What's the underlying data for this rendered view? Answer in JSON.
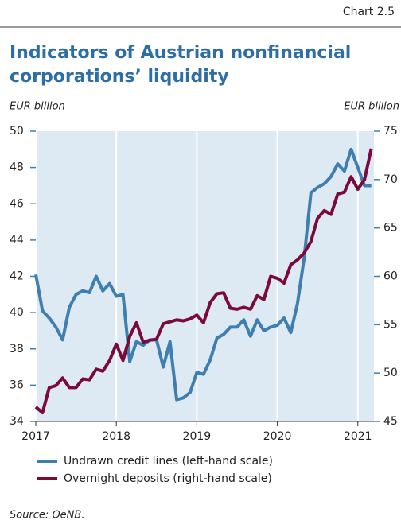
{
  "chart_data": {
    "type": "line",
    "chart_label": "Chart 2.5",
    "title": [
      "Indicators of Austrian nonfinancial",
      "corporations’ liquidity"
    ],
    "y_label": "EUR billion",
    "y2_label": "EUR billion",
    "source": "Source: OeNB.",
    "x": [
      2017.0,
      2017.083,
      2017.167,
      2017.25,
      2017.333,
      2017.417,
      2017.5,
      2017.583,
      2017.667,
      2017.75,
      2017.833,
      2017.917,
      2018.0,
      2018.083,
      2018.167,
      2018.25,
      2018.333,
      2018.417,
      2018.5,
      2018.583,
      2018.667,
      2018.75,
      2018.833,
      2018.917,
      2019.0,
      2019.083,
      2019.167,
      2019.25,
      2019.333,
      2019.417,
      2019.5,
      2019.583,
      2019.667,
      2019.75,
      2019.833,
      2019.917,
      2020.0,
      2020.083,
      2020.167,
      2020.25,
      2020.333,
      2020.417,
      2020.5,
      2020.583,
      2020.667,
      2020.75,
      2020.833,
      2020.917,
      2021.0,
      2021.083,
      2021.167
    ],
    "series": [
      {
        "name": "Undrawn credit lines (left-hand scale)",
        "color": "#3f7fb0",
        "values": [
          42.1,
          40.1,
          39.7,
          39.2,
          38.5,
          40.3,
          41.0,
          41.2,
          41.1,
          42.0,
          41.2,
          41.6,
          40.9,
          41.0,
          37.3,
          38.4,
          38.2,
          38.5,
          38.5,
          37.0,
          38.4,
          35.2,
          35.3,
          35.6,
          36.7,
          36.6,
          37.4,
          38.6,
          38.8,
          39.2,
          39.2,
          39.6,
          38.7,
          39.6,
          39.0,
          39.2,
          39.3,
          39.7,
          38.9,
          40.5,
          43.0,
          46.6,
          46.9,
          47.1,
          47.5,
          48.2,
          47.8,
          49.0,
          48.0,
          47.0,
          47.0
        ]
      },
      {
        "name": "Overnight deposits (right-hand scale)",
        "color": "#7b0a3a",
        "axis": "y2",
        "values": [
          46.5,
          45.9,
          48.5,
          48.7,
          49.5,
          48.5,
          48.5,
          49.4,
          49.3,
          50.4,
          50.2,
          51.3,
          53.0,
          51.3,
          53.8,
          55.2,
          53.2,
          53.4,
          53.5,
          55.1,
          55.3,
          55.5,
          55.4,
          55.6,
          56.0,
          55.2,
          57.3,
          58.2,
          58.3,
          56.7,
          56.6,
          56.8,
          56.6,
          58.0,
          57.6,
          60.0,
          59.8,
          59.3,
          61.2,
          61.7,
          62.4,
          63.6,
          66.0,
          66.8,
          66.4,
          68.5,
          68.7,
          70.3,
          69.0,
          70.0,
          73.2
        ]
      }
    ],
    "xlim": [
      2017,
      2021.2
    ],
    "xticks": [
      2017,
      2018,
      2019,
      2020,
      2021
    ],
    "ylim": [
      34,
      50
    ],
    "yticks": [
      34,
      36,
      38,
      40,
      42,
      44,
      46,
      48,
      50
    ],
    "y2lim": [
      45,
      75
    ],
    "y2ticks": [
      45,
      50,
      55,
      60,
      65,
      70,
      75
    ],
    "grid": true,
    "background": "#dde9f3"
  }
}
